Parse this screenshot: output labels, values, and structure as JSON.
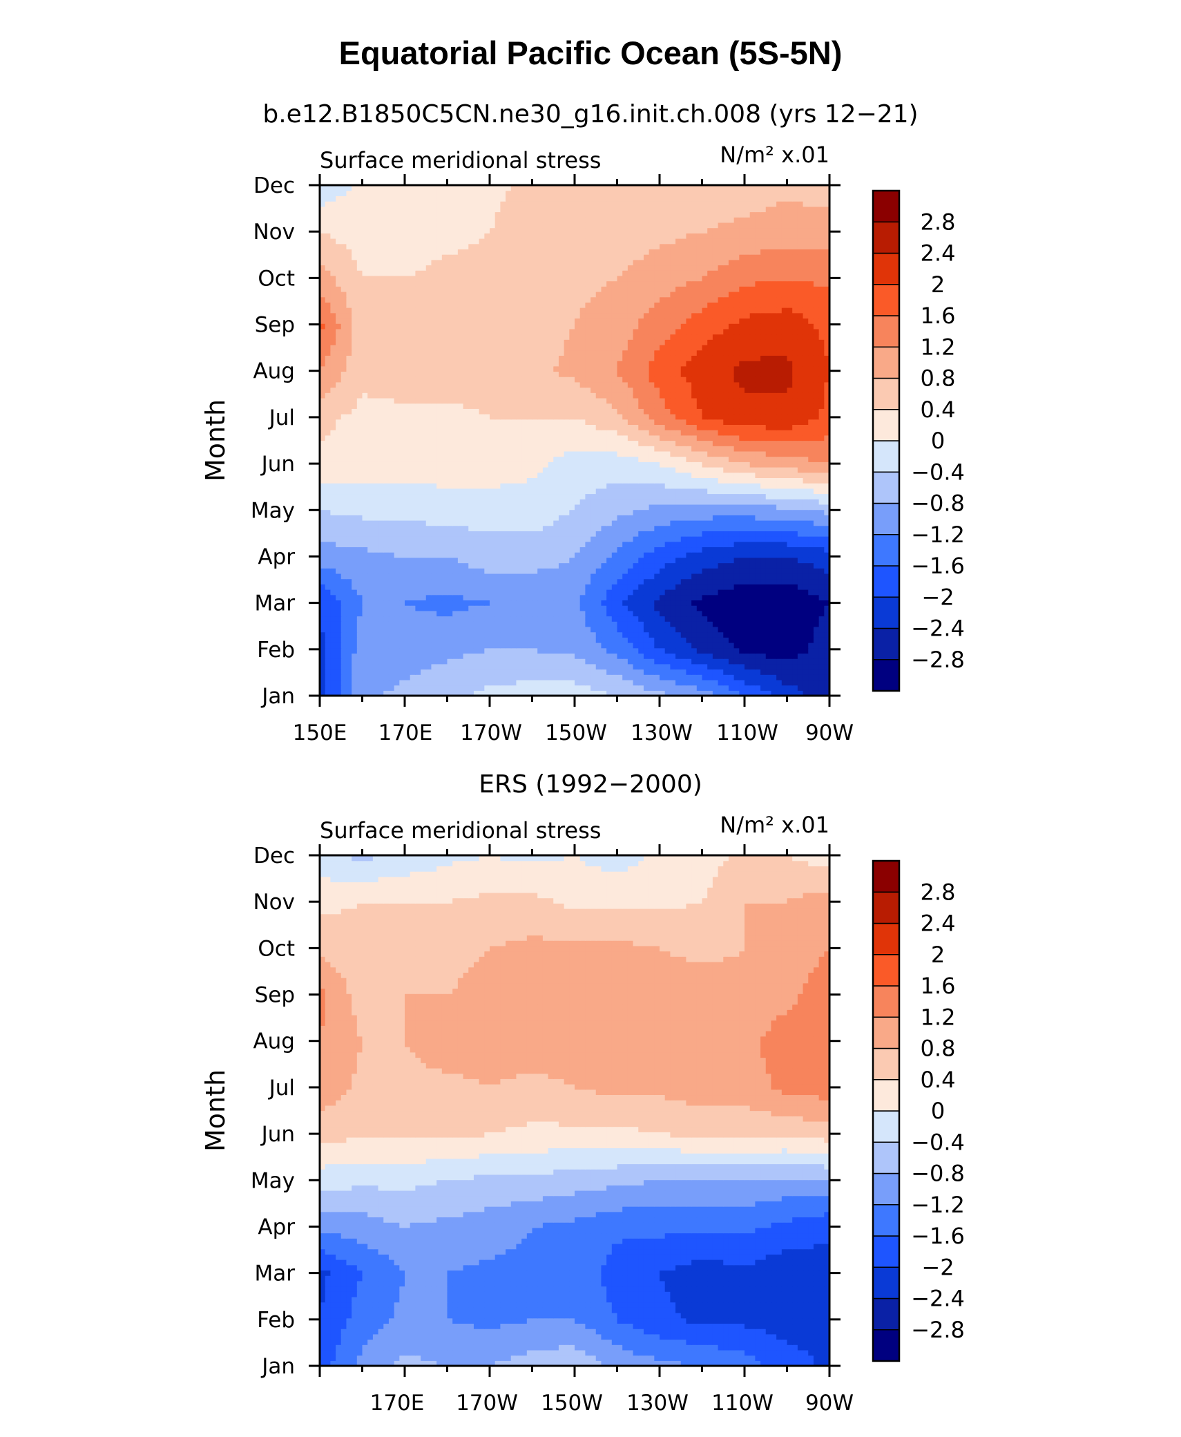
{
  "figure": {
    "title": "Equatorial Pacific Ocean (5S-5N)"
  },
  "palette": [
    "#000080",
    "#0a21a6",
    "#0a3ad6",
    "#1e55ff",
    "#3e78ff",
    "#789efa",
    "#aec5fa",
    "#d5e6fb",
    "#fde9dc",
    "#fbcab2",
    "#f9a988",
    "#f7845c",
    "#fa5a28",
    "#e03408",
    "#b81c02",
    "#8b0000"
  ],
  "colorbar_labels": [
    "2.8",
    "2.4",
    "2",
    "1.6",
    "1.2",
    "0.8",
    "0.4",
    "0",
    "−0.4",
    "−0.8",
    "−1.2",
    "−1.6",
    "−2",
    "−2.4",
    "−2.8"
  ],
  "chart_data": [
    {
      "type": "heatmap",
      "subtitle": "b.e12.B1850C5CN.ne30_g16.init.ch.008 (yrs 12−21)",
      "left_label": "Surface meridional stress",
      "right_label": "N/m² x.01",
      "ylabel": "Month",
      "x_tick_labels": [
        "150E",
        "170E",
        "170W",
        "150W",
        "130W",
        "110W",
        "90W"
      ],
      "y_tick_labels": [
        "Jan",
        "Feb",
        "Mar",
        "Apr",
        "May",
        "Jun",
        "Jul",
        "Aug",
        "Sep",
        "Oct",
        "Nov",
        "Dec"
      ],
      "x_range": [
        "150E",
        "90W"
      ],
      "levels": [
        -2.8,
        -2.4,
        -2,
        -1.6,
        -1.2,
        -0.8,
        -0.4,
        0,
        0.4,
        0.8,
        1.2,
        1.6,
        2,
        2.4,
        2.8
      ],
      "x": [
        150,
        160,
        170,
        180,
        190,
        200,
        210,
        220,
        230,
        240,
        250,
        260,
        270
      ],
      "y": [
        "Jan",
        "Feb",
        "Mar",
        "Apr",
        "May",
        "Jun",
        "Jul",
        "Aug",
        "Sep",
        "Oct",
        "Nov",
        "Dec"
      ],
      "values": [
        [
          -2.2,
          -0.9,
          -0.7,
          -0.5,
          -0.3,
          -0.2,
          -0.2,
          -0.4,
          -0.7,
          -1.0,
          -1.6,
          -2.2,
          -2.6
        ],
        [
          -2.1,
          -1.0,
          -1.0,
          -0.9,
          -0.8,
          -0.8,
          -0.9,
          -1.3,
          -2.0,
          -2.5,
          -2.9,
          -3.0,
          -2.6
        ],
        [
          -2.0,
          -1.2,
          -1.2,
          -1.3,
          -1.2,
          -1.2,
          -1.1,
          -1.9,
          -2.5,
          -2.9,
          -3.1,
          -3.1,
          -2.8
        ],
        [
          -1.0,
          -0.9,
          -0.8,
          -0.8,
          -0.6,
          -0.6,
          -0.8,
          -1.3,
          -1.8,
          -2.2,
          -2.4,
          -2.4,
          -2.2
        ],
        [
          -0.4,
          -0.3,
          -0.3,
          -0.2,
          -0.2,
          -0.2,
          -0.4,
          -0.7,
          -0.9,
          -1.0,
          -1.0,
          -0.9,
          -0.7
        ],
        [
          0.3,
          0.2,
          0.2,
          0.2,
          0.2,
          0.1,
          -0.2,
          -0.2,
          0.0,
          0.4,
          0.8,
          1.0,
          1.2
        ],
        [
          0.5,
          0.3,
          0.3,
          0.3,
          0.4,
          0.4,
          0.4,
          0.7,
          1.4,
          2.0,
          2.3,
          2.3,
          1.9
        ],
        [
          1.2,
          0.5,
          0.6,
          0.6,
          0.6,
          0.7,
          0.9,
          1.2,
          1.8,
          2.2,
          2.5,
          2.5,
          2.0
        ],
        [
          1.7,
          0.6,
          0.6,
          0.6,
          0.6,
          0.6,
          0.8,
          1.0,
          1.4,
          1.8,
          2.1,
          2.2,
          1.9
        ],
        [
          1.0,
          0.4,
          0.4,
          0.5,
          0.5,
          0.6,
          0.7,
          0.8,
          1.0,
          1.2,
          1.5,
          1.6,
          1.5
        ],
        [
          0.4,
          0.2,
          0.2,
          0.3,
          0.4,
          0.6,
          0.6,
          0.6,
          0.7,
          0.8,
          0.9,
          1.0,
          1.0
        ],
        [
          -0.3,
          0.1,
          0.2,
          0.3,
          0.3,
          0.5,
          0.4,
          0.4,
          0.4,
          0.5,
          0.6,
          0.7,
          0.6
        ]
      ]
    },
    {
      "type": "heatmap",
      "subtitle": "ERS (1992−2000)",
      "left_label": "Surface meridional stress",
      "right_label": "N/m² x.01",
      "ylabel": "Month",
      "x_tick_labels": [
        "170E",
        "170W",
        "150W",
        "130W",
        "110W",
        "90W"
      ],
      "y_tick_labels": [
        "Jan",
        "Feb",
        "Mar",
        "Apr",
        "May",
        "Jun",
        "Jul",
        "Aug",
        "Sep",
        "Oct",
        "Nov",
        "Dec"
      ],
      "x_range": [
        "150E",
        "90W"
      ],
      "levels": [
        -2.8,
        -2.4,
        -2,
        -1.6,
        -1.2,
        -0.8,
        -0.4,
        0,
        0.4,
        0.8,
        1.2,
        1.6,
        2,
        2.4,
        2.8
      ],
      "x": [
        150,
        160,
        170,
        180,
        190,
        200,
        210,
        220,
        230,
        240,
        250,
        260,
        270
      ],
      "y": [
        "Jan",
        "Feb",
        "Mar",
        "Apr",
        "May",
        "Jun",
        "Jul",
        "Aug",
        "Sep",
        "Oct",
        "Nov",
        "Dec"
      ],
      "values": [
        [
          -1.8,
          -1.1,
          -0.7,
          -0.8,
          -0.8,
          -0.6,
          -0.5,
          -0.9,
          -1.1,
          -1.2,
          -1.4,
          -1.8,
          -2.1
        ],
        [
          -2.0,
          -1.4,
          -1.1,
          -1.2,
          -1.3,
          -1.2,
          -1.2,
          -1.6,
          -1.9,
          -2.1,
          -2.1,
          -2.2,
          -2.1
        ],
        [
          -2.1,
          -1.6,
          -1.2,
          -1.2,
          -1.3,
          -1.3,
          -1.3,
          -1.8,
          -2.0,
          -2.2,
          -2.1,
          -2.3,
          -2.2
        ],
        [
          -1.1,
          -1.0,
          -0.8,
          -0.9,
          -1.0,
          -1.2,
          -1.3,
          -1.5,
          -1.5,
          -1.5,
          -1.5,
          -1.7,
          -1.9
        ],
        [
          -0.2,
          -0.3,
          -0.3,
          -0.4,
          -0.5,
          -0.5,
          -0.6,
          -0.7,
          -0.8,
          -0.8,
          -0.8,
          -0.9,
          -0.8
        ],
        [
          0.5,
          0.5,
          0.5,
          0.5,
          0.4,
          0.3,
          0.3,
          0.3,
          0.4,
          0.5,
          0.5,
          0.5,
          0.6
        ],
        [
          1.1,
          0.7,
          0.7,
          0.7,
          0.8,
          0.7,
          0.8,
          0.9,
          0.9,
          1.0,
          1.0,
          1.3,
          1.4
        ],
        [
          1.2,
          0.8,
          0.8,
          1.0,
          1.0,
          1.0,
          1.0,
          1.0,
          1.0,
          1.0,
          1.1,
          1.4,
          1.5
        ],
        [
          1.3,
          0.6,
          0.8,
          0.8,
          0.9,
          1.0,
          1.1,
          1.1,
          1.0,
          1.0,
          0.9,
          1.1,
          1.4
        ],
        [
          0.7,
          0.5,
          0.6,
          0.7,
          0.8,
          0.9,
          0.9,
          0.9,
          0.8,
          0.7,
          0.8,
          1.0,
          1.2
        ],
        [
          0.3,
          0.4,
          0.4,
          0.4,
          0.5,
          0.5,
          0.3,
          0.3,
          0.3,
          0.4,
          0.8,
          0.8,
          1.0
        ],
        [
          -0.3,
          -0.5,
          -0.3,
          -0.1,
          0.0,
          -0.1,
          0.0,
          -0.2,
          0.1,
          0.2,
          0.5,
          0.4,
          0.2
        ]
      ]
    }
  ]
}
